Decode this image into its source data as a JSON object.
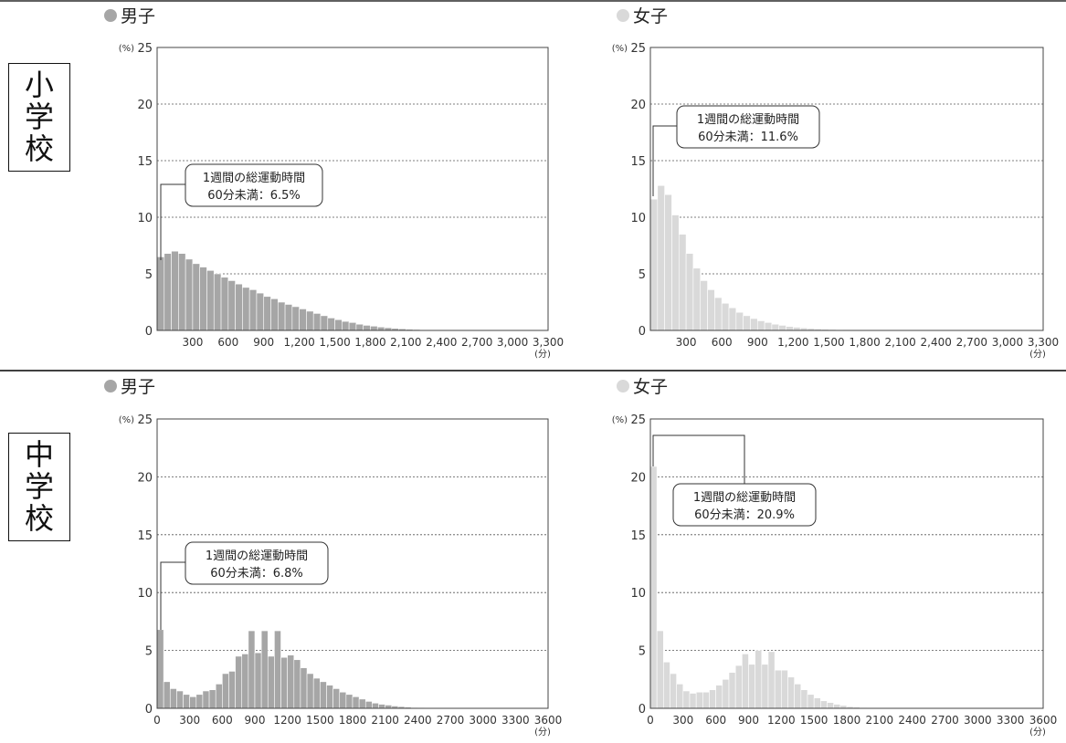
{
  "sections": [
    {
      "label_chars": [
        "小",
        "学",
        "校"
      ]
    },
    {
      "label_chars": [
        "中",
        "学",
        "校"
      ]
    }
  ],
  "panels": [
    {
      "section": "小学校",
      "title": "男子",
      "marker_color": "#a6a6a6",
      "bar_color": "#a6a6a6",
      "y_unit": "(%)",
      "x_unit": "(分)",
      "note_line1": "1週間の総運動時間",
      "note_line2": "60分未満：6.5%"
    },
    {
      "section": "小学校",
      "title": "女子",
      "marker_color": "#d9d9d9",
      "bar_color": "#d9d9d9",
      "y_unit": "(%)",
      "x_unit": "(分)",
      "note_line1": "1週間の総運動時間",
      "note_line2": "60分未満：11.6%"
    },
    {
      "section": "中学校",
      "title": "男子",
      "marker_color": "#a6a6a6",
      "bar_color": "#a6a6a6",
      "y_unit": "(%)",
      "x_unit": "(分)",
      "note_line1": "1週間の総運動時間",
      "note_line2": "60分未満：6.8%"
    },
    {
      "section": "中学校",
      "title": "女子",
      "marker_color": "#d9d9d9",
      "bar_color": "#d9d9d9",
      "y_unit": "(%)",
      "x_unit": "(分)",
      "note_line1": "1週間の総運動時間",
      "note_line2": "60分未満：20.9%"
    }
  ],
  "chart_data": [
    {
      "type": "bar",
      "title": "男子",
      "ylabel": "(%)",
      "xlabel": "(分)",
      "ylim": [
        0,
        25
      ],
      "xlim": [
        0,
        3300
      ],
      "bin_width": 60,
      "grid": true,
      "yticks": [
        "0",
        "5",
        "10",
        "15",
        "20",
        "25"
      ],
      "xtick_values": [
        300,
        600,
        900,
        1200,
        1500,
        1800,
        2100,
        2400,
        2700,
        3000,
        3300
      ],
      "xtick_labels": [
        "300",
        "600",
        "900",
        "1,200",
        "1,500",
        "1,800",
        "2,100",
        "2,400",
        "2,700",
        "3,000",
        "3,300"
      ],
      "values": [
        6.5,
        6.8,
        7.0,
        6.8,
        6.3,
        5.9,
        5.6,
        5.3,
        5.0,
        4.7,
        4.4,
        4.1,
        3.8,
        3.6,
        3.3,
        3.0,
        2.8,
        2.5,
        2.3,
        2.1,
        1.9,
        1.7,
        1.5,
        1.3,
        1.1,
        0.95,
        0.8,
        0.7,
        0.55,
        0.45,
        0.38,
        0.3,
        0.24,
        0.18,
        0.14,
        0.1,
        0.08,
        0.06,
        0.04,
        0.03,
        0.02,
        0.015,
        0.01
      ],
      "annotation": "1週間の総運動時間 60分未満：6.5%"
    },
    {
      "type": "bar",
      "title": "女子",
      "ylabel": "(%)",
      "xlabel": "(分)",
      "ylim": [
        0,
        25
      ],
      "xlim": [
        0,
        3300
      ],
      "bin_width": 60,
      "grid": true,
      "yticks": [
        "0",
        "5",
        "10",
        "15",
        "20",
        "25"
      ],
      "xtick_values": [
        300,
        600,
        900,
        1200,
        1500,
        1800,
        2100,
        2400,
        2700,
        3000,
        3300
      ],
      "xtick_labels": [
        "300",
        "600",
        "900",
        "1,200",
        "1,500",
        "1,800",
        "2,100",
        "2,400",
        "2,700",
        "3,000",
        "3,300"
      ],
      "values": [
        11.6,
        12.8,
        12.0,
        10.2,
        8.5,
        6.8,
        5.5,
        4.4,
        3.6,
        2.9,
        2.4,
        2.0,
        1.6,
        1.3,
        1.05,
        0.85,
        0.7,
        0.55,
        0.45,
        0.35,
        0.28,
        0.22,
        0.17,
        0.13,
        0.1,
        0.08,
        0.06,
        0.05,
        0.03,
        0.02,
        0.015,
        0.01
      ],
      "annotation": "1週間の総運動時間 60分未満：11.6%"
    },
    {
      "type": "bar",
      "title": "男子",
      "ylabel": "(%)",
      "xlabel": "(分)",
      "ylim": [
        0,
        25
      ],
      "xlim": [
        0,
        3600
      ],
      "bin_width": 60,
      "grid": true,
      "yticks": [
        "0",
        "5",
        "10",
        "15",
        "20",
        "25"
      ],
      "xtick_values": [
        0,
        300,
        600,
        900,
        1200,
        1500,
        1800,
        2100,
        2400,
        2700,
        3000,
        3300,
        3600
      ],
      "xtick_labels": [
        "0",
        "300",
        "600",
        "900",
        "1200",
        "1500",
        "1800",
        "2100",
        "2400",
        "2700",
        "3000",
        "3300",
        "3600"
      ],
      "values": [
        6.8,
        2.3,
        1.7,
        1.5,
        1.2,
        1.0,
        1.2,
        1.5,
        1.6,
        2.1,
        3.0,
        3.2,
        4.5,
        4.7,
        6.7,
        4.8,
        6.7,
        4.5,
        6.7,
        4.4,
        4.6,
        4.2,
        3.5,
        3.0,
        2.6,
        2.3,
        2.0,
        1.7,
        1.4,
        1.2,
        1.0,
        0.8,
        0.6,
        0.45,
        0.35,
        0.28,
        0.2,
        0.15,
        0.1,
        0.07,
        0.05,
        0.03
      ],
      "annotation": "1週間の総運動時間 60分未満：6.8%"
    },
    {
      "type": "bar",
      "title": "女子",
      "ylabel": "(%)",
      "xlabel": "(分)",
      "ylim": [
        0,
        25
      ],
      "xlim": [
        0,
        3600
      ],
      "bin_width": 60,
      "grid": true,
      "yticks": [
        "0",
        "5",
        "10",
        "15",
        "20",
        "25"
      ],
      "xtick_values": [
        0,
        300,
        600,
        900,
        1200,
        1500,
        1800,
        2100,
        2400,
        2700,
        3000,
        3300,
        3600
      ],
      "xtick_labels": [
        "0",
        "300",
        "600",
        "900",
        "1200",
        "1500",
        "1800",
        "2100",
        "2400",
        "2700",
        "3000",
        "3300",
        "3600"
      ],
      "values": [
        20.9,
        6.7,
        4.0,
        3.0,
        2.1,
        1.5,
        1.3,
        1.4,
        1.4,
        1.6,
        2.0,
        2.5,
        3.1,
        3.7,
        4.7,
        3.8,
        5.0,
        3.8,
        4.9,
        3.3,
        3.3,
        2.7,
        2.1,
        1.6,
        1.2,
        0.9,
        0.65,
        0.5,
        0.35,
        0.25,
        0.15,
        0.1,
        0.05
      ],
      "annotation": "1週間の総運動時間 60分未満：20.9%"
    }
  ]
}
